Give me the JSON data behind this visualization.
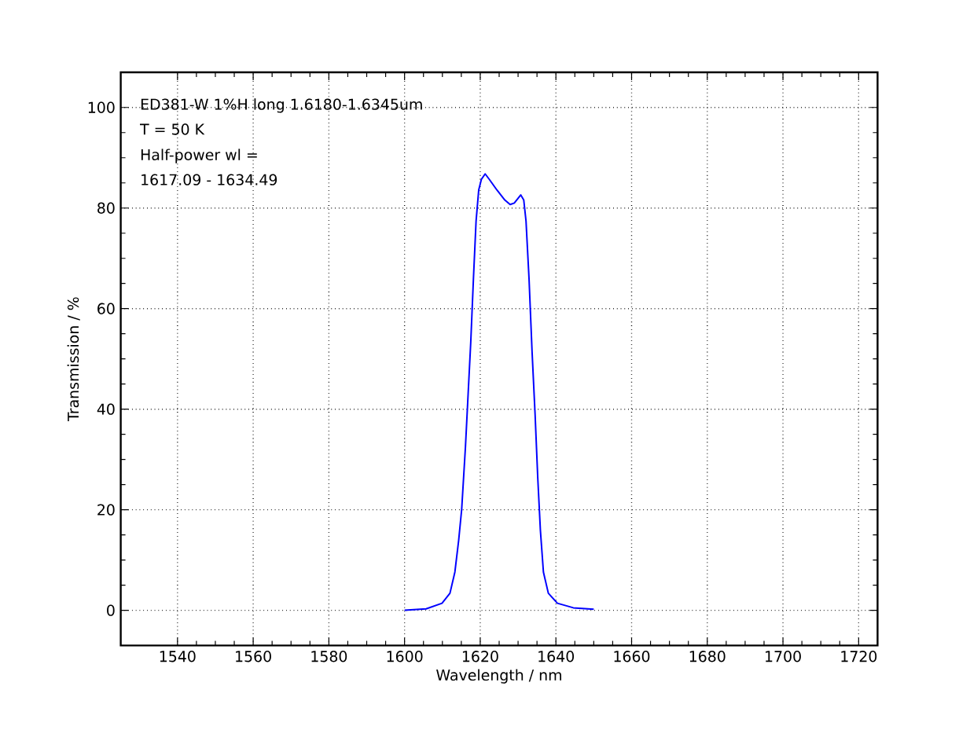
{
  "chart_data": {
    "type": "line",
    "xlabel": "Wavelength / nm",
    "ylabel": "Transmission / %",
    "annotations": [
      "ED381-W  1%H long  1.6180-1.6345um",
      "T = 50 K",
      "Half-power wl =",
      "1617.09 - 1634.49"
    ],
    "xlim": [
      1525,
      1725
    ],
    "ylim": [
      -7,
      107
    ],
    "xticks": [
      1540,
      1560,
      1580,
      1600,
      1620,
      1640,
      1660,
      1680,
      1700,
      1720
    ],
    "yticks": [
      0,
      20,
      40,
      60,
      80,
      100
    ],
    "grid": true,
    "marker": "none",
    "line_style": "solid",
    "series": [
      {
        "color": "#0000ff",
        "x": [
          1600,
          1605.7,
          1609.9,
          1612,
          1613.3,
          1614.3,
          1615.1,
          1616.1,
          1616.8,
          1617.5,
          1618.2,
          1618.9,
          1619.6,
          1620.3,
          1621.3,
          1622.4,
          1624.4,
          1626.5,
          1627.9,
          1629,
          1630.7,
          1631.5,
          1632.1,
          1632.9,
          1633.7,
          1634.5,
          1635.2,
          1635.9,
          1636.7,
          1638,
          1640.4,
          1644.6,
          1650
        ],
        "values": [
          0,
          0.3,
          1.4,
          3.4,
          7.6,
          13.9,
          20.1,
          32.6,
          43,
          53.4,
          65.9,
          77.4,
          83.6,
          85.7,
          86.8,
          85.7,
          83.6,
          81.6,
          80.7,
          81,
          82.6,
          81.6,
          77.4,
          65.9,
          51.4,
          38.9,
          26.4,
          15.9,
          7.6,
          3.4,
          1.4,
          0.5,
          0.2
        ]
      }
    ]
  }
}
